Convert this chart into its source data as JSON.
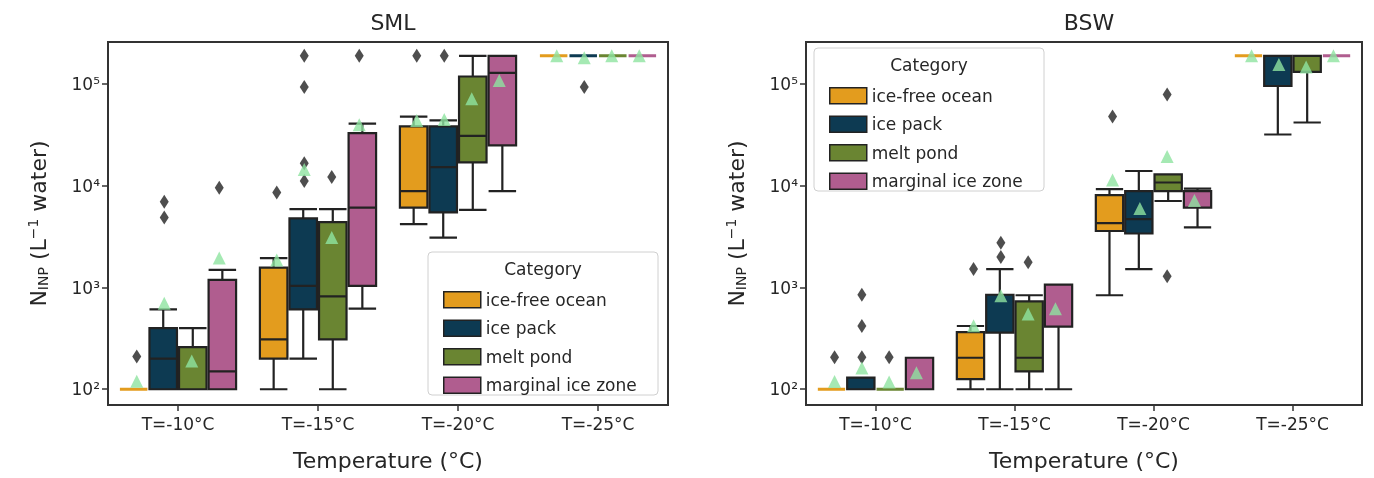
{
  "chart_data": [
    {
      "type": "box",
      "title": "SML",
      "xlabel": "Temperature (°C)",
      "ylabel": "N$_{INP}$ (L$^{−1}$ water)",
      "legend_title": "Category",
      "legend": "bottom right",
      "log": "y",
      "grid": false,
      "categories": [
        "T=-10°C",
        "T=-15°C",
        "T=-20°C",
        "T=-25°C"
      ],
      "ylim": [
        70,
        260000
      ],
      "yticks": [
        {
          "value": 100,
          "label": "10²"
        },
        {
          "value": 1000,
          "label": "10³"
        },
        {
          "value": 10000,
          "label": "10⁴"
        },
        {
          "value": 100000,
          "label": "10⁵"
        }
      ],
      "series": [
        {
          "name": "ice-free ocean",
          "color": "#e39c1e",
          "boxes": [
            {
              "low": 100,
              "q1": 100,
              "median": 100,
              "q3": 100,
              "high": 100,
              "mean": 120,
              "outliers": [
                210
              ]
            },
            {
              "low": 100,
              "q1": 200,
              "median": 310,
              "q3": 1570,
              "high": 1950,
              "mean": 1870,
              "outliers": [
                8600
              ]
            },
            {
              "low": 4200,
              "q1": 6100,
              "median": 8900,
              "q3": 38500,
              "high": 48000,
              "mean": 44000,
              "outliers": [
                190000
              ]
            },
            {
              "low": 190000,
              "q1": 190000,
              "median": 190000,
              "q3": 190000,
              "high": 190000,
              "mean": 190000
            }
          ]
        },
        {
          "name": "ice pack",
          "color": "#0d3a52",
          "boxes": [
            {
              "low": 100,
              "q1": 100,
              "median": 200,
              "q3": 400,
              "high": 610,
              "mean": 700,
              "outliers": [
                4900,
                7000
              ]
            },
            {
              "low": 200,
              "q1": 610,
              "median": 1040,
              "q3": 4800,
              "high": 5900,
              "mean": 14500,
              "outliers": [
                11200,
                16700,
                94000,
                190000
              ]
            },
            {
              "low": 3100,
              "q1": 5500,
              "median": 15300,
              "q3": 38500,
              "high": 44000,
              "mean": 45000,
              "outliers": [
                190000
              ]
            },
            {
              "low": 190000,
              "q1": 190000,
              "median": 190000,
              "q3": 190000,
              "high": 190000,
              "mean": 182000,
              "outliers": [
                94000
              ]
            }
          ]
        },
        {
          "name": "melt pond",
          "color": "#6a8532",
          "boxes": [
            {
              "low": 100,
              "q1": 100,
              "median": 100,
              "q3": 260,
              "high": 400,
              "mean": 190
            },
            {
              "low": 100,
              "q1": 310,
              "median": 820,
              "q3": 4400,
              "high": 5900,
              "mean": 3100,
              "outliers": [
                12200
              ]
            },
            {
              "low": 5800,
              "q1": 17000,
              "median": 31000,
              "q3": 119000,
              "high": 190000,
              "mean": 72000
            },
            {
              "low": 190000,
              "q1": 190000,
              "median": 190000,
              "q3": 190000,
              "high": 190000,
              "mean": 190000
            }
          ]
        },
        {
          "name": "marginal ice zone",
          "color": "#b05d8f",
          "boxes": [
            {
              "low": 100,
              "q1": 100,
              "median": 150,
              "q3": 1190,
              "high": 1490,
              "mean": 1950,
              "outliers": [
                9600
              ]
            },
            {
              "low": 620,
              "q1": 1040,
              "median": 6100,
              "q3": 33000,
              "high": 41000,
              "mean": 40000,
              "outliers": [
                190000
              ]
            },
            {
              "low": 8900,
              "q1": 25000,
              "median": 129000,
              "q3": 190000,
              "high": 190000,
              "mean": 109000
            },
            {
              "low": 190000,
              "q1": 190000,
              "median": 190000,
              "q3": 190000,
              "high": 190000,
              "mean": 190000
            }
          ]
        }
      ]
    },
    {
      "type": "box",
      "title": "BSW",
      "xlabel": "Temperature (°C)",
      "ylabel": "N$_{INP}$ (L$^{−1}$ water)",
      "legend_title": "Category",
      "legend": "top left",
      "log": "y",
      "grid": false,
      "categories": [
        "T=-10°C",
        "T=-15°C",
        "T=-20°C",
        "T=-25°C"
      ],
      "ylim": [
        70,
        260000
      ],
      "yticks": [
        {
          "value": 100,
          "label": "10²"
        },
        {
          "value": 1000,
          "label": "10³"
        },
        {
          "value": 10000,
          "label": "10⁴"
        },
        {
          "value": 100000,
          "label": "10⁵"
        }
      ],
      "series": [
        {
          "name": "ice-free ocean",
          "color": "#e39c1e",
          "boxes": [
            {
              "low": 100,
              "q1": 100,
              "median": 100,
              "q3": 100,
              "high": 100,
              "mean": 119,
              "outliers": [
                206
              ]
            },
            {
              "low": 100,
              "q1": 126,
              "median": 204,
              "q3": 365,
              "high": 419,
              "mean": 420,
              "outliers": [
                1520
              ]
            },
            {
              "low": 840,
              "q1": 3600,
              "median": 4300,
              "q3": 8100,
              "high": 9300,
              "mean": 11400,
              "outliers": [
                48000
              ]
            },
            {
              "low": 190000,
              "q1": 190000,
              "median": 190000,
              "q3": 190000,
              "high": 190000,
              "mean": 190000
            }
          ]
        },
        {
          "name": "ice pack",
          "color": "#0d3a52",
          "boxes": [
            {
              "low": 100,
              "q1": 100,
              "median": 100,
              "q3": 130,
              "high": 130,
              "mean": 162,
              "outliers": [
                206,
                419,
                850
              ]
            },
            {
              "low": 100,
              "q1": 360,
              "median": 360,
              "q3": 850,
              "high": 1520,
              "mean": 830,
              "outliers": [
                2000,
                2760
              ]
            },
            {
              "low": 1520,
              "q1": 3400,
              "median": 4700,
              "q3": 8900,
              "high": 14000,
              "mean": 6000
            },
            {
              "low": 32000,
              "q1": 96000,
              "median": 190000,
              "q3": 190000,
              "high": 190000,
              "mean": 156000
            }
          ]
        },
        {
          "name": "melt pond",
          "color": "#6a8532",
          "boxes": [
            {
              "low": 100,
              "q1": 100,
              "median": 100,
              "q3": 100,
              "high": 100,
              "mean": 118,
              "outliers": [
                206
              ]
            },
            {
              "low": 100,
              "q1": 150,
              "median": 204,
              "q3": 730,
              "high": 840,
              "mean": 550,
              "outliers": [
                1770
              ]
            },
            {
              "low": 7100,
              "q1": 8900,
              "median": 10800,
              "q3": 13000,
              "high": 13000,
              "mean": 19400,
              "outliers": [
                1290,
                79000
              ]
            },
            {
              "low": 42000,
              "q1": 132000,
              "median": 190000,
              "q3": 190000,
              "high": 190000,
              "mean": 148000
            }
          ]
        },
        {
          "name": "marginal ice zone",
          "color": "#b05d8f",
          "boxes": [
            {
              "low": 100,
              "q1": 100,
              "median": 100,
              "q3": 204,
              "high": 204,
              "mean": 145
            },
            {
              "low": 100,
              "q1": 413,
              "median": 413,
              "q3": 1070,
              "high": 1070,
              "mean": 620
            },
            {
              "low": 3900,
              "q1": 6100,
              "median": 8900,
              "q3": 8900,
              "high": 9400,
              "mean": 7200
            },
            {
              "low": 190000,
              "q1": 190000,
              "median": 190000,
              "q3": 190000,
              "high": 190000,
              "mean": 190000
            }
          ]
        }
      ]
    }
  ]
}
